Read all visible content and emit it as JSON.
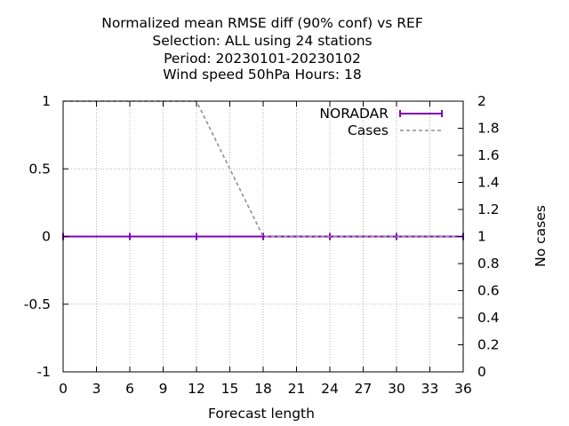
{
  "chart_data": {
    "type": "line",
    "title_lines": [
      "Normalized mean RMSE diff (90% conf) vs REF",
      "Selection: ALL using    24 stations",
      "Period: 20230101-20230102",
      "Wind speed 50hPa   Hours:  18"
    ],
    "xlabel": "Forecast length",
    "ylabel": "",
    "y2label": "No cases",
    "xlim": [
      0,
      36
    ],
    "ylim": [
      -1,
      1
    ],
    "y2lim": [
      0,
      2
    ],
    "x_ticks": [
      0,
      3,
      6,
      9,
      12,
      15,
      18,
      21,
      24,
      27,
      30,
      33,
      36
    ],
    "x_tick_labels": [
      "0",
      "3",
      "6",
      "9",
      "12",
      "15",
      "18",
      "21",
      "24",
      "27",
      "30",
      "33",
      "36"
    ],
    "y_ticks": [
      -1,
      -0.5,
      0,
      0.5,
      1
    ],
    "y_tick_labels": [
      "-1",
      "-0.5",
      "0",
      "0.5",
      "1"
    ],
    "y2_ticks": [
      0,
      0.2,
      0.4,
      0.6,
      0.8,
      1,
      1.2,
      1.4,
      1.6,
      1.8,
      2
    ],
    "y2_tick_labels": [
      "0",
      "0.2",
      "0.4",
      "0.6",
      "0.8",
      "1",
      "1.2",
      "1.4",
      "1.6",
      "1.8",
      "2"
    ],
    "grid": true,
    "legend_position": "top-right",
    "series": [
      {
        "name": "NORADAR",
        "axis": "y",
        "style": "solid-errorbars",
        "color": "#8000c0",
        "x": [
          0,
          6,
          12,
          18,
          24,
          30,
          36
        ],
        "values": [
          0,
          0,
          0,
          0,
          0,
          0,
          0
        ]
      },
      {
        "name": "Cases",
        "axis": "y2",
        "style": "dashed",
        "color": "#909090",
        "x": [
          0,
          6,
          12,
          18,
          24,
          30,
          36
        ],
        "values": [
          2,
          2,
          2,
          1,
          1,
          1,
          1
        ]
      }
    ]
  }
}
